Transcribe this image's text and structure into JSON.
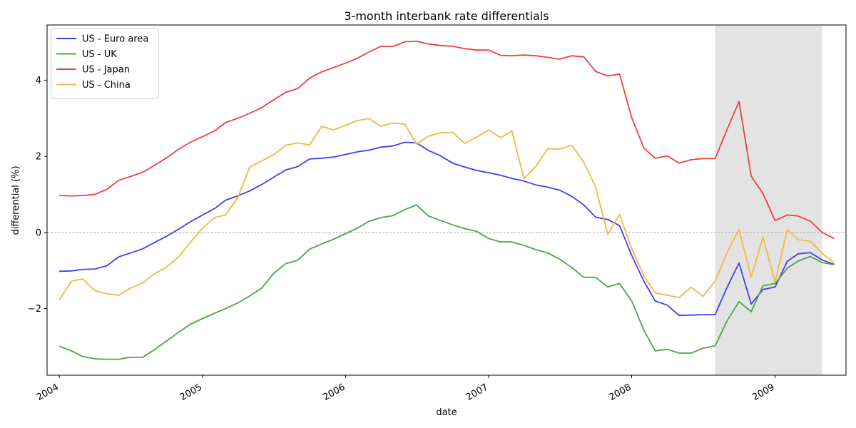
{
  "chart_data": {
    "type": "line",
    "title": "3-month interbank rate differentials",
    "xlabel": "date",
    "ylabel": "differential (%)",
    "x_axis": "date",
    "xlim": [
      "2003-12-01",
      "2009-07-01"
    ],
    "ylim": [
      -3.75,
      5.45
    ],
    "xticks": [
      {
        "date": "2004-01-01",
        "label": "2004"
      },
      {
        "date": "2005-01-01",
        "label": "2005"
      },
      {
        "date": "2006-01-01",
        "label": "2006"
      },
      {
        "date": "2007-01-01",
        "label": "2007"
      },
      {
        "date": "2008-01-01",
        "label": "2008"
      },
      {
        "date": "2009-01-01",
        "label": "2009"
      }
    ],
    "yticks": [
      {
        "value": -2,
        "label": "−2"
      },
      {
        "value": 0,
        "label": "0"
      },
      {
        "value": 2,
        "label": "2"
      },
      {
        "value": 4,
        "label": "4"
      }
    ],
    "zero_line": true,
    "grid": false,
    "legend_position": "top-left",
    "shaded_period": {
      "start": "2008-08-01",
      "end": "2009-05-01",
      "color": "#e3e3e3"
    },
    "x": [
      "2004-01",
      "2004-02",
      "2004-03",
      "2004-04",
      "2004-05",
      "2004-06",
      "2004-07",
      "2004-08",
      "2004-09",
      "2004-10",
      "2004-11",
      "2004-12",
      "2005-01",
      "2005-02",
      "2005-03",
      "2005-04",
      "2005-05",
      "2005-06",
      "2005-07",
      "2005-08",
      "2005-09",
      "2005-10",
      "2005-11",
      "2005-12",
      "2006-01",
      "2006-02",
      "2006-03",
      "2006-04",
      "2006-05",
      "2006-06",
      "2006-07",
      "2006-08",
      "2006-09",
      "2006-10",
      "2006-11",
      "2006-12",
      "2007-01",
      "2007-02",
      "2007-03",
      "2007-04",
      "2007-05",
      "2007-06",
      "2007-07",
      "2007-08",
      "2007-09",
      "2007-10",
      "2007-11",
      "2007-12",
      "2008-01",
      "2008-02",
      "2008-03",
      "2008-04",
      "2008-05",
      "2008-06",
      "2008-07",
      "2008-08",
      "2008-09",
      "2008-10",
      "2008-11",
      "2008-12",
      "2009-01",
      "2009-02",
      "2009-03",
      "2009-04",
      "2009-05",
      "2009-06"
    ],
    "series": [
      {
        "name": "US - Euro area",
        "color": "#4040ee",
        "values": [
          -1.02,
          -1.01,
          -0.97,
          -0.96,
          -0.88,
          -0.64,
          -0.54,
          -0.43,
          -0.26,
          -0.1,
          0.09,
          0.28,
          0.46,
          0.63,
          0.85,
          0.96,
          1.09,
          1.26,
          1.45,
          1.64,
          1.73,
          1.93,
          1.95,
          1.98,
          2.05,
          2.12,
          2.16,
          2.24,
          2.27,
          2.37,
          2.35,
          2.15,
          2.01,
          1.82,
          1.72,
          1.63,
          1.57,
          1.5,
          1.42,
          1.35,
          1.25,
          1.19,
          1.11,
          0.95,
          0.72,
          0.4,
          0.34,
          0.18,
          -0.6,
          -1.28,
          -1.8,
          -1.91,
          -2.18,
          -2.17,
          -2.16,
          -2.16,
          -1.43,
          -0.8,
          -1.88,
          -1.5,
          -1.43,
          -0.76,
          -0.56,
          -0.53,
          -0.72,
          -0.84
        ]
      },
      {
        "name": "US - UK",
        "color": "#4aa64a",
        "values": [
          -2.99,
          -3.11,
          -3.26,
          -3.32,
          -3.33,
          -3.33,
          -3.28,
          -3.28,
          -3.07,
          -2.85,
          -2.62,
          -2.41,
          -2.26,
          -2.12,
          -2.0,
          -1.85,
          -1.67,
          -1.46,
          -1.08,
          -0.82,
          -0.73,
          -0.44,
          -0.3,
          -0.18,
          -0.03,
          0.12,
          0.29,
          0.39,
          0.44,
          0.6,
          0.72,
          0.43,
          0.31,
          0.2,
          0.1,
          0.03,
          -0.16,
          -0.25,
          -0.25,
          -0.34,
          -0.45,
          -0.54,
          -0.7,
          -0.92,
          -1.18,
          -1.18,
          -1.43,
          -1.34,
          -1.8,
          -2.57,
          -3.11,
          -3.07,
          -3.17,
          -3.17,
          -3.04,
          -2.98,
          -2.31,
          -1.82,
          -2.08,
          -1.4,
          -1.34,
          -0.94,
          -0.75,
          -0.63,
          -0.79,
          -0.85
        ]
      },
      {
        "name": "US - Japan",
        "color": "#ee4040",
        "values": [
          0.97,
          0.96,
          0.97,
          1.0,
          1.13,
          1.37,
          1.47,
          1.58,
          1.77,
          1.96,
          2.19,
          2.37,
          2.52,
          2.67,
          2.89,
          3.0,
          3.13,
          3.28,
          3.48,
          3.68,
          3.78,
          4.05,
          4.22,
          4.33,
          4.45,
          4.58,
          4.74,
          4.89,
          4.88,
          5.01,
          5.02,
          4.95,
          4.91,
          4.89,
          4.83,
          4.79,
          4.79,
          4.65,
          4.64,
          4.66,
          4.64,
          4.6,
          4.55,
          4.64,
          4.61,
          4.23,
          4.11,
          4.16,
          3.02,
          2.22,
          1.95,
          2.01,
          1.82,
          1.91,
          1.94,
          1.94,
          2.72,
          3.44,
          1.48,
          1.02,
          0.31,
          0.46,
          0.43,
          0.3,
          0.0,
          -0.16
        ]
      },
      {
        "name": "US - China",
        "color": "#f5b63e",
        "values": [
          -1.78,
          -1.28,
          -1.22,
          -1.53,
          -1.61,
          -1.65,
          -1.46,
          -1.33,
          -1.08,
          -0.91,
          -0.64,
          -0.26,
          0.12,
          0.39,
          0.46,
          0.92,
          1.71,
          1.88,
          2.04,
          2.29,
          2.35,
          2.3,
          2.79,
          2.69,
          2.82,
          2.94,
          2.99,
          2.79,
          2.88,
          2.84,
          2.32,
          2.53,
          2.62,
          2.63,
          2.34,
          2.5,
          2.69,
          2.49,
          2.67,
          1.41,
          1.73,
          2.2,
          2.19,
          2.29,
          1.84,
          1.19,
          -0.05,
          0.47,
          -0.42,
          -1.14,
          -1.59,
          -1.65,
          -1.71,
          -1.44,
          -1.68,
          -1.28,
          -0.52,
          0.08,
          -1.18,
          -0.12,
          -1.31,
          0.07,
          -0.19,
          -0.23,
          -0.55,
          -0.8
        ]
      }
    ]
  }
}
